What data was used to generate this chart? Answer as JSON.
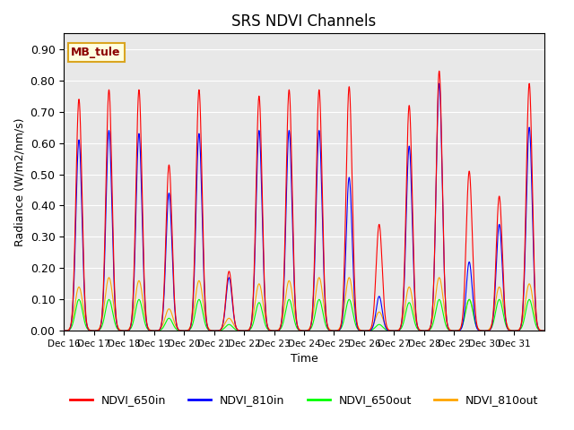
{
  "title": "SRS NDVI Channels",
  "ylabel": "Radiance (W/m2/nm/s)",
  "xlabel": "Time",
  "annotation": "MB_tule",
  "ylim": [
    0.0,
    0.95
  ],
  "yticks": [
    0.0,
    0.1,
    0.2,
    0.3,
    0.4,
    0.5,
    0.6,
    0.7,
    0.8,
    0.9
  ],
  "bg_color": "#e8e8e8",
  "legend": [
    {
      "label": "NDVI_650in",
      "color": "red"
    },
    {
      "label": "NDVI_810in",
      "color": "blue"
    },
    {
      "label": "NDVI_650out",
      "color": "lime"
    },
    {
      "label": "NDVI_810out",
      "color": "orange"
    }
  ],
  "xtick_labels": [
    "Dec 16",
    "Dec 17",
    "Dec 18",
    "Dec 19",
    "Dec 20",
    "Dec 21",
    "Dec 22",
    "Dec 23",
    "Dec 24",
    "Dec 25",
    "Dec 26",
    "Dec 27",
    "Dec 28",
    "Dec 29",
    "Dec 30",
    "Dec 31"
  ],
  "num_days": 16,
  "peaks_650in": [
    0.74,
    0.77,
    0.77,
    0.53,
    0.77,
    0.19,
    0.75,
    0.77,
    0.77,
    0.78,
    0.34,
    0.72,
    0.83,
    0.51,
    0.43,
    0.79
  ],
  "peaks_810in": [
    0.61,
    0.64,
    0.63,
    0.44,
    0.63,
    0.17,
    0.64,
    0.64,
    0.64,
    0.49,
    0.11,
    0.59,
    0.79,
    0.22,
    0.34,
    0.65
  ],
  "peaks_650out": [
    0.1,
    0.1,
    0.1,
    0.04,
    0.1,
    0.02,
    0.09,
    0.1,
    0.1,
    0.1,
    0.02,
    0.09,
    0.1,
    0.1,
    0.1,
    0.1
  ],
  "peaks_810out": [
    0.14,
    0.17,
    0.16,
    0.07,
    0.16,
    0.04,
    0.15,
    0.16,
    0.17,
    0.17,
    0.06,
    0.14,
    0.17,
    0.1,
    0.14,
    0.15
  ]
}
